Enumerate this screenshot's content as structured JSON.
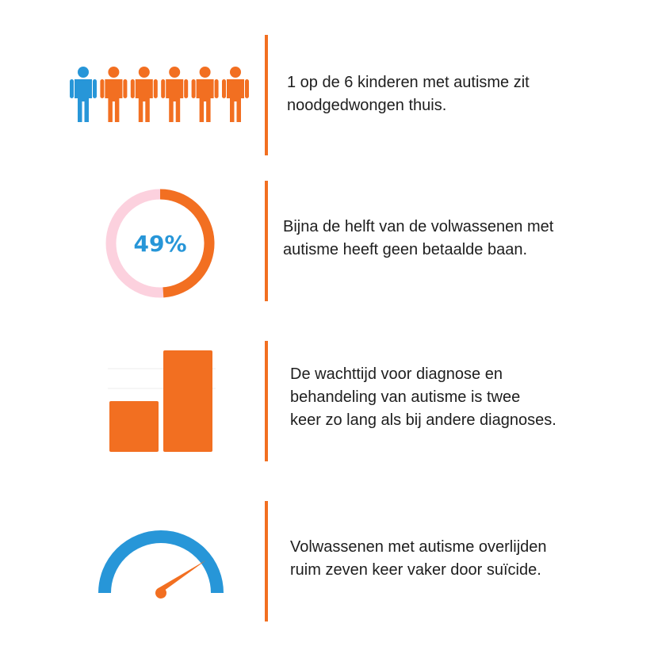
{
  "colors": {
    "accent": "#f26f21",
    "highlight": "#2796d8",
    "ring_track": "#fcd1de",
    "text": "#1e1e1e"
  },
  "stats": [
    {
      "icon": "people-icon",
      "people_total": 6,
      "people_highlighted": 1,
      "text": "1 op de 6 kinderen met autisme zit\nnoodgedwongen thuis."
    },
    {
      "icon": "donut-progress-icon",
      "percent_label": "49%",
      "percent_value": 49,
      "text": "Bijna de helft van de volwassenen met\nautisme heeft geen betaalde baan."
    },
    {
      "icon": "bar-comparison-icon",
      "bar_values": [
        1,
        2
      ],
      "text": "De wachttijd voor diagnose en\nbehandeling van autisme is twee\nkeer zo lang als bij andere diagnoses."
    },
    {
      "icon": "speedometer-icon",
      "gauge_level": 0.8,
      "text": "Volwassenen met autisme overlijden\nruim zeven keer vaker door suïcide."
    }
  ]
}
